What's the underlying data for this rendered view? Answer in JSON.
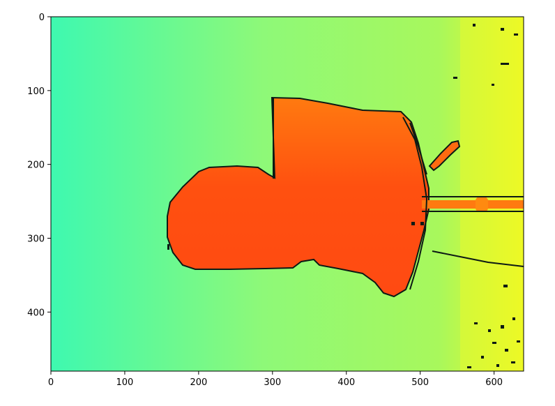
{
  "chart_data": {
    "type": "heatmap",
    "title": "",
    "xlabel": "",
    "ylabel": "",
    "image_width": 640,
    "image_height": 480,
    "xlim": [
      0,
      640
    ],
    "ylim": [
      480,
      0
    ],
    "x_ticks": [
      0,
      100,
      200,
      300,
      400,
      500,
      600
    ],
    "y_ticks": [
      0,
      100,
      200,
      300,
      400
    ],
    "x_tick_labels": [
      "0",
      "100",
      "200",
      "300",
      "400",
      "500",
      "600"
    ],
    "y_tick_labels": [
      "0",
      "100",
      "200",
      "300",
      "400"
    ],
    "grid": false,
    "legend": "none",
    "colormap": "turbo",
    "background_gradient": [
      "#3ef9b0",
      "#8ef978",
      "#a8f85c",
      "#f4f91e"
    ],
    "object_color": "#ff5a14",
    "noise_color": "#0c1a14"
  }
}
